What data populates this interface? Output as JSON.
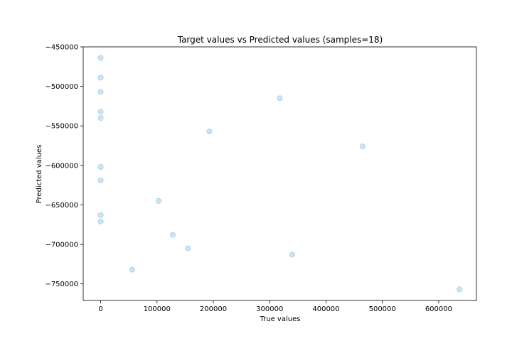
{
  "chart_data": {
    "type": "scatter",
    "title": "Target values vs Predicted values (samples=18)",
    "xlabel": "True values",
    "ylabel": "Predicted values",
    "xlim": [
      -31000,
      667000
    ],
    "ylim": [
      -771000,
      -450000
    ],
    "xticks": [
      0,
      100000,
      200000,
      300000,
      400000,
      500000,
      600000
    ],
    "yticks": [
      -450000,
      -500000,
      -550000,
      -600000,
      -650000,
      -700000,
      -750000
    ],
    "xtick_labels": [
      "0",
      "100000",
      "200000",
      "300000",
      "400000",
      "500000",
      "600000"
    ],
    "ytick_labels": [
      "−450000",
      "−500000",
      "−550000",
      "−600000",
      "−650000",
      "−700000",
      "−750000"
    ],
    "grid": false,
    "point_color": "#a6cee3",
    "points": [
      {
        "x": 0,
        "y": -464000
      },
      {
        "x": 0,
        "y": -489000
      },
      {
        "x": 0,
        "y": -507000
      },
      {
        "x": 0,
        "y": -532000
      },
      {
        "x": 0,
        "y": -540000
      },
      {
        "x": 0,
        "y": -602000
      },
      {
        "x": 0,
        "y": -619000
      },
      {
        "x": 0,
        "y": -663000
      },
      {
        "x": 0,
        "y": -671000
      },
      {
        "x": 56000,
        "y": -732000
      },
      {
        "x": 103000,
        "y": -645000
      },
      {
        "x": 128000,
        "y": -688000
      },
      {
        "x": 155000,
        "y": -705000
      },
      {
        "x": 193000,
        "y": -557000
      },
      {
        "x": 318000,
        "y": -515000
      },
      {
        "x": 340000,
        "y": -713000
      },
      {
        "x": 465000,
        "y": -576000
      },
      {
        "x": 637000,
        "y": -757000
      }
    ]
  }
}
